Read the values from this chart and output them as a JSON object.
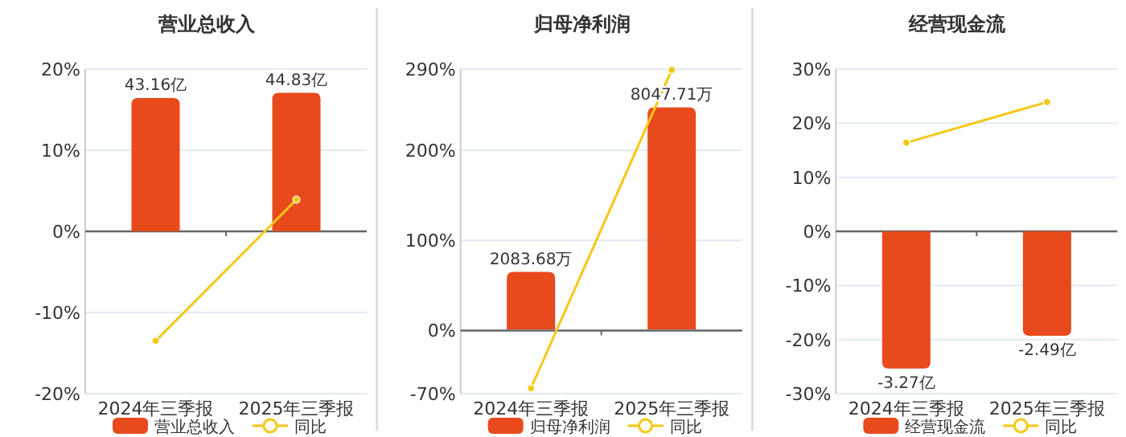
{
  "chart_data": [
    {
      "type": "bar",
      "title": "营业总收入",
      "categories": [
        "2024年三季报",
        "2025年三季报"
      ],
      "ylim": [
        -20,
        20
      ],
      "yticks": [
        {
          "value": -20,
          "label": "-20%"
        },
        {
          "value": -10,
          "label": "-10%"
        },
        {
          "value": 0,
          "label": "0%"
        },
        {
          "value": 10,
          "label": "10%"
        },
        {
          "value": 20,
          "label": "20%"
        }
      ],
      "y2lim": [
        -52.5,
        52.5
      ],
      "grid": "y",
      "legend": "bottom",
      "marker": "circle",
      "series": [
        {
          "name": "营业总收入",
          "axis": "y2",
          "color": "#e84a1c",
          "values": [
            43.16,
            44.83
          ],
          "value_labels": [
            "43.16亿",
            "44.83亿"
          ]
        },
        {
          "name": "同比",
          "type": "line",
          "color": "#f5c816",
          "values": [
            -13.5,
            3.9
          ]
        }
      ]
    },
    {
      "type": "bar",
      "title": "归母净利润",
      "categories": [
        "2024年三季报",
        "2025年三季报"
      ],
      "ylim": [
        -70,
        290
      ],
      "yticks": [
        {
          "value": -70,
          "label": "-70%"
        },
        {
          "value": 0,
          "label": "0%"
        },
        {
          "value": 100,
          "label": "100%"
        },
        {
          "value": 200,
          "label": "200%"
        },
        {
          "value": 290,
          "label": "290%"
        }
      ],
      "y2lim": [
        -2330,
        9440
      ],
      "grid": "y",
      "legend": "bottom",
      "marker": "circle",
      "series": [
        {
          "name": "归母净利润",
          "axis": "y2",
          "color": "#e84a1c",
          "values": [
            2083.68,
            8047.71
          ],
          "value_labels": [
            "2083.68万",
            "8047.71万"
          ]
        },
        {
          "name": "同比",
          "type": "line",
          "color": "#f5c816",
          "values": [
            -64,
            289
          ]
        }
      ]
    },
    {
      "type": "bar",
      "title": "经营现金流",
      "categories": [
        "2024年三季报",
        "2025年三季报"
      ],
      "ylim": [
        -30,
        30
      ],
      "yticks": [
        {
          "value": -30,
          "label": "-30%"
        },
        {
          "value": -20,
          "label": "-20%"
        },
        {
          "value": -10,
          "label": "-10%"
        },
        {
          "value": 0,
          "label": "0%"
        },
        {
          "value": 10,
          "label": "10%"
        },
        {
          "value": 20,
          "label": "20%"
        },
        {
          "value": 30,
          "label": "30%"
        }
      ],
      "y2lim": [
        -3.87,
        3.87
      ],
      "grid": "y",
      "legend": "bottom",
      "marker": "circle",
      "series": [
        {
          "name": "经营现金流",
          "axis": "y2",
          "color": "#e84a1c",
          "values": [
            -3.27,
            -2.49
          ],
          "value_labels": [
            "-3.27亿",
            "-2.49亿"
          ]
        },
        {
          "name": "同比",
          "type": "line",
          "color": "#f5c816",
          "values": [
            16.4,
            23.9
          ]
        }
      ]
    }
  ]
}
